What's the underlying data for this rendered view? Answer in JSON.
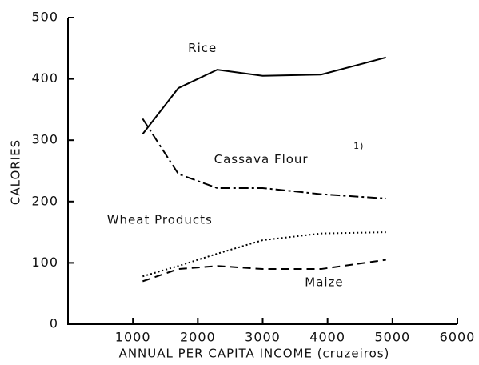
{
  "chart_data": {
    "type": "line",
    "x_label": "ANNUAL PER CAPITA INCOME (cruzeiros)",
    "y_label": "CALORIES",
    "x": [
      1150,
      1700,
      2300,
      3000,
      3900,
      4900
    ],
    "series": [
      {
        "name": "Rice",
        "color": "#000000",
        "dash": "solid",
        "values": [
          310,
          385,
          415,
          405,
          407,
          435
        ]
      },
      {
        "name": "Cassava Flour",
        "color": "#000000",
        "dash": "dashdot",
        "values": [
          335,
          245,
          222,
          222,
          212,
          205
        ]
      },
      {
        "name": "Wheat Products",
        "color": "#000000",
        "dash": "dotted",
        "values": [
          78,
          95,
          115,
          137,
          148,
          150
        ]
      },
      {
        "name": "Maize",
        "color": "#000000",
        "dash": "dashed",
        "values": [
          70,
          90,
          95,
          90,
          90,
          105
        ]
      }
    ],
    "annotations": [
      "1)"
    ],
    "xlim": [
      0,
      6000
    ],
    "xticks": [
      1000,
      2000,
      3000,
      4000,
      5000,
      6000
    ],
    "ylim": [
      0,
      500
    ],
    "yticks": [
      0,
      100,
      200,
      300,
      400,
      500
    ]
  }
}
